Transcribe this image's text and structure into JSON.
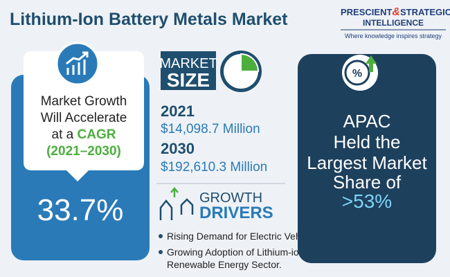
{
  "header": {
    "title": "Lithium-Ion Battery Metals Market"
  },
  "logo": {
    "name_left": "PRESCIENT",
    "ampersand": "&",
    "name_right": "STRATEGIC",
    "name_bottom": "INTELLIGENCE",
    "tagline": "Where knowledge inspires strategy"
  },
  "growth": {
    "lines": [
      "Market Growth",
      "Will Accelerate"
    ],
    "prefix": "at a ",
    "highlight": "CAGR",
    "period": "(2021–2030)",
    "rate": "33.7%"
  },
  "market_size": {
    "badge_top": "MARKET",
    "badge_bottom": "SIZE",
    "entries": [
      {
        "year": "2021",
        "value": "$14,098.7 Million"
      },
      {
        "year": "2030",
        "value": "$192,610.3 Million"
      }
    ]
  },
  "drivers": {
    "heading_top": "GROWTH",
    "heading_bottom": "DRIVERS",
    "items": [
      "Rising Demand for Electric Vehicles.",
      "Growing Adoption of Lithium-ion Batteries in the",
      "Renewable Energy Sector."
    ]
  },
  "region": {
    "lines": [
      "APAC",
      "Held the",
      "Largest Market",
      "Share of"
    ],
    "share": ">53%"
  }
}
